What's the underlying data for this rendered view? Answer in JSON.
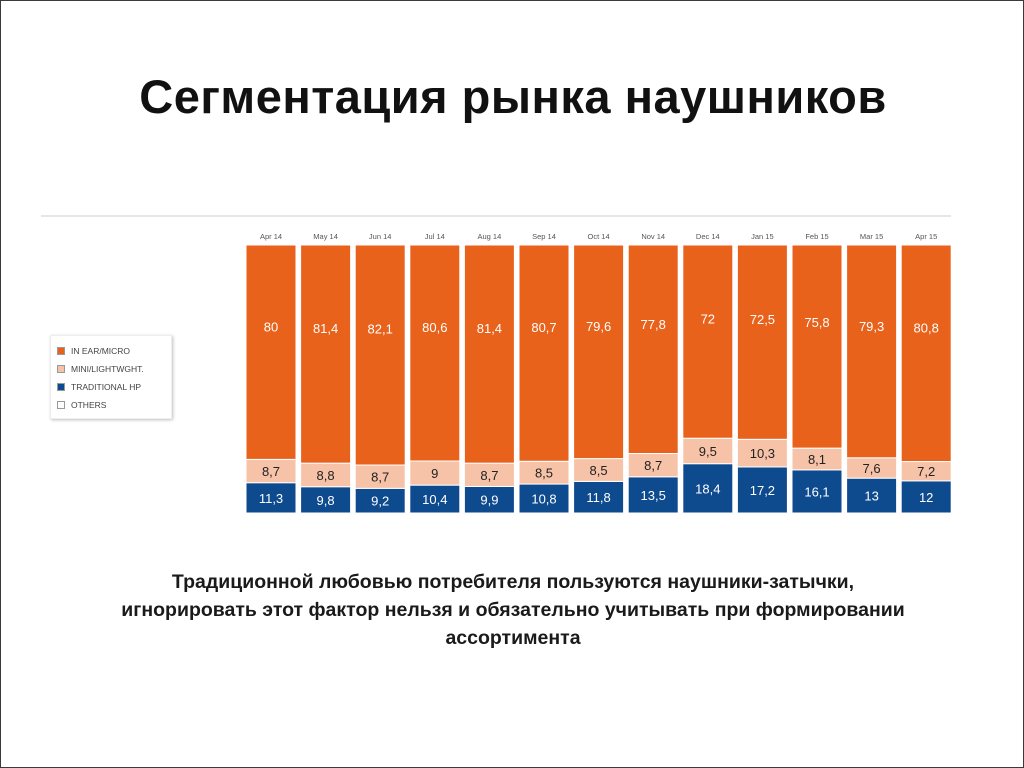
{
  "slide": {
    "title": "Сегментация рынка наушников",
    "caption_lines": [
      "Традиционной любовью потребителя пользуются наушники-затычки,",
      "игнорировать этот фактор нельзя и обязательно учитывать при формировании",
      "ассортимента"
    ]
  },
  "legend": [
    {
      "label": "IN EAR/MICRO",
      "color": "#e8621c"
    },
    {
      "label": "MINI/LIGHTWGHT.",
      "color": "#f7c3a8"
    },
    {
      "label": "TRADITIONAL HP",
      "color": "#0d4a8e"
    },
    {
      "label": "OTHERS",
      "color": "#ffffff"
    }
  ],
  "chart_data": {
    "type": "bar",
    "stacked": true,
    "categories": [
      "Apr 14",
      "May 14",
      "Jun 14",
      "Jul 14",
      "Aug 14",
      "Sep 14",
      "Oct 14",
      "Nov 14",
      "Dec 14",
      "Jan 15",
      "Feb 15",
      "Mar 15",
      "Apr 15"
    ],
    "series": [
      {
        "name": "TRADITIONAL HP",
        "color": "#0d4a8e",
        "label_color": "#ffffff",
        "values": [
          11.3,
          9.8,
          9.2,
          10.4,
          9.9,
          10.8,
          11.8,
          13.5,
          18.4,
          17.2,
          16.1,
          13,
          12
        ],
        "labels": [
          "11,3",
          "9,8",
          "9,2",
          "10,4",
          "9,9",
          "10,8",
          "11,8",
          "13,5",
          "18,4",
          "17,2",
          "16,1",
          "13",
          "12"
        ]
      },
      {
        "name": "MINI/LIGHTWGHT.",
        "color": "#f7c3a8",
        "label_color": "#222222",
        "values": [
          8.7,
          8.8,
          8.7,
          9,
          8.7,
          8.5,
          8.5,
          8.7,
          9.5,
          10.3,
          8.1,
          7.6,
          7.2
        ],
        "labels": [
          "8,7",
          "8,8",
          "8,7",
          "9",
          "8,7",
          "8,5",
          "8,5",
          "8,7",
          "9,5",
          "10,3",
          "8,1",
          "7,6",
          "7,2"
        ]
      },
      {
        "name": "IN EAR/MICRO",
        "color": "#e8621c",
        "label_color": "#ffffff",
        "values": [
          80,
          81.4,
          82.1,
          80.6,
          81.4,
          80.7,
          79.6,
          77.8,
          72,
          72.5,
          75.8,
          79.3,
          80.8
        ],
        "labels": [
          "80",
          "81,4",
          "82,1",
          "80,6",
          "81,4",
          "80,7",
          "79,6",
          "77,8",
          "72",
          "72,5",
          "75,8",
          "79,3",
          "80,8"
        ]
      }
    ],
    "ylim": [
      0,
      100
    ],
    "legend_position": "left"
  }
}
